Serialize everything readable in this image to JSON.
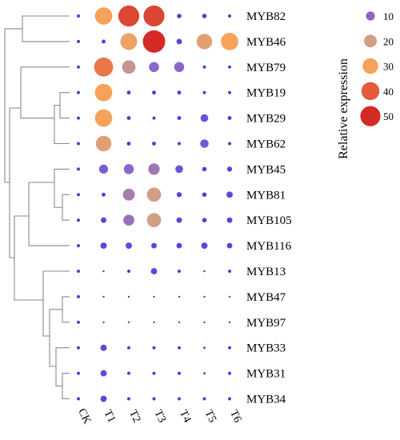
{
  "chart_data": {
    "type": "bubble-heatmap",
    "genes": [
      "MYB82",
      "MYB46",
      "MYB79",
      "MYB19",
      "MYB29",
      "MYB62",
      "MYB45",
      "MYB81",
      "MYB105",
      "MYB116",
      "MYB13",
      "MYB47",
      "MYB97",
      "MYB33",
      "MYB31",
      "MYB34"
    ],
    "conditions": [
      "CK",
      "T1",
      "T2",
      "T3",
      "T4",
      "T5",
      "T6"
    ],
    "values": [
      [
        1,
        30,
        44,
        44,
        2,
        2,
        1
      ],
      [
        1,
        1.5,
        28,
        50,
        3,
        24,
        30
      ],
      [
        1,
        36,
        18,
        10,
        10,
        1,
        1
      ],
      [
        1,
        30,
        1.5,
        1.5,
        1.5,
        1,
        1
      ],
      [
        1,
        30,
        1.5,
        1,
        1.5,
        6,
        1.5
      ],
      [
        1,
        24,
        1.5,
        1.5,
        1,
        7,
        1
      ],
      [
        1,
        8,
        10,
        13,
        6,
        2,
        2.5
      ],
      [
        1,
        1.5,
        14,
        20,
        2.5,
        2,
        4
      ],
      [
        1,
        3,
        12,
        20,
        3,
        2,
        3
      ],
      [
        1,
        4,
        4,
        3,
        3,
        4,
        3
      ],
      [
        1,
        0.3,
        1,
        4,
        1,
        0.3,
        1
      ],
      [
        1,
        0.3,
        0.2,
        0.2,
        0.3,
        0.2,
        0.2
      ],
      [
        1,
        0.3,
        0.2,
        0.2,
        0.3,
        0.3,
        0.3
      ],
      [
        1,
        4,
        1,
        1,
        1,
        0.5,
        1
      ],
      [
        1,
        4,
        1,
        1,
        1,
        0.5,
        1
      ],
      [
        1,
        4,
        1,
        1,
        1,
        1,
        1
      ]
    ],
    "legend": {
      "title": "Relative expression",
      "entries": [
        {
          "label": "10",
          "value": 10,
          "color": "#8a66c8"
        },
        {
          "label": "20",
          "value": 20,
          "color": "#d39e86"
        },
        {
          "label": "30",
          "value": 30,
          "color": "#f6a25a"
        },
        {
          "label": "40",
          "value": 40,
          "color": "#e25b3d"
        },
        {
          "label": "50",
          "value": 50,
          "color": "#d42a26"
        }
      ],
      "placement": "top-right"
    },
    "color_scale": {
      "low": "#4433e8",
      "stops": [
        {
          "value": 0,
          "color": "#4433e8"
        },
        {
          "value": 10,
          "color": "#8a66c8"
        },
        {
          "value": 20,
          "color": "#d39e86"
        },
        {
          "value": 30,
          "color": "#f6a25a"
        },
        {
          "value": 40,
          "color": "#e25b3d"
        },
        {
          "value": 50,
          "color": "#d42a26"
        }
      ]
    },
    "dendrogram": "row-clustering"
  }
}
